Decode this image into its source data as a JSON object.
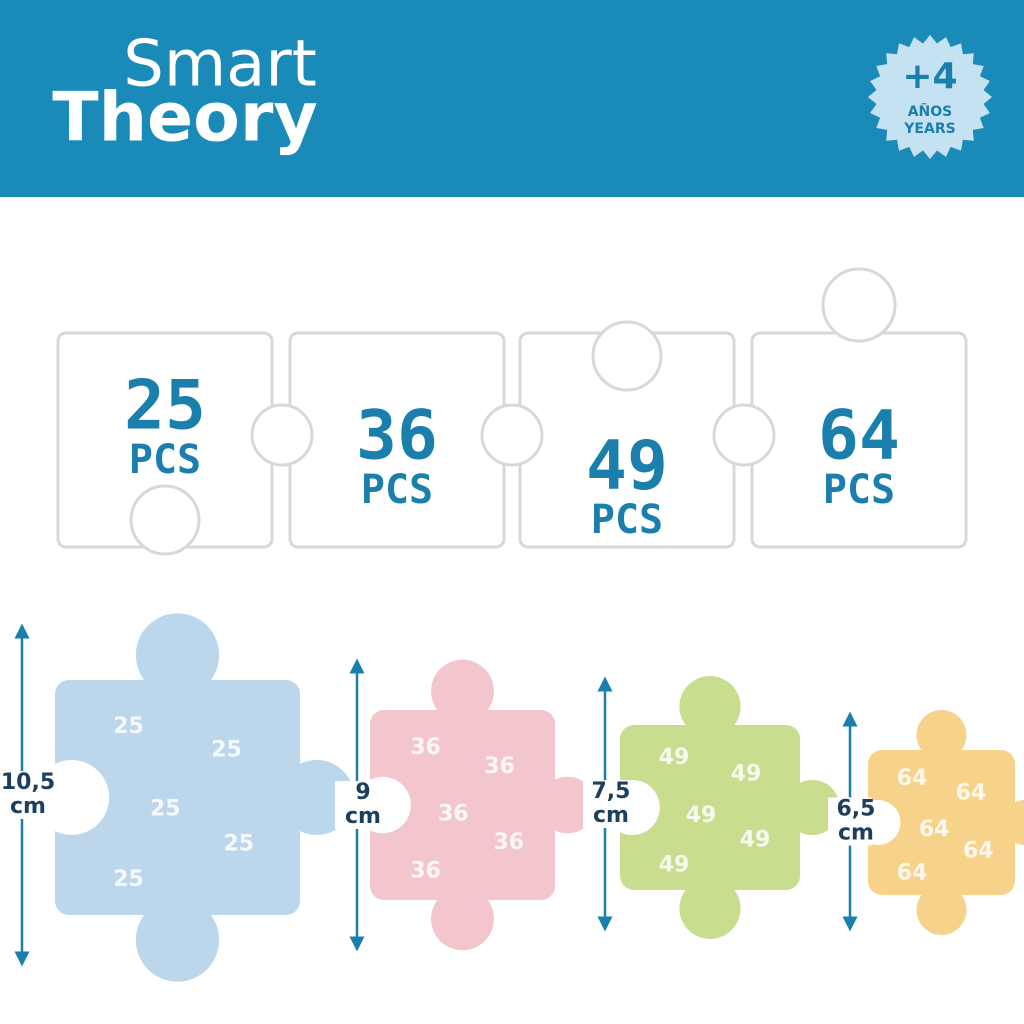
{
  "header": {
    "brand_top": "Smart",
    "brand_bottom": "Theory",
    "age_badge": {
      "number": "+4",
      "label_es": "AÑOS",
      "label_en": "YEARS"
    }
  },
  "puzzle_counts": [
    {
      "count": "25",
      "unit": "PCS"
    },
    {
      "count": "36",
      "unit": "PCS"
    },
    {
      "count": "49",
      "unit": "PCS"
    },
    {
      "count": "64",
      "unit": "PCS"
    }
  ],
  "pieces": [
    {
      "size": "10,5",
      "unit": "cm"
    },
    {
      "size": "9",
      "unit": "cm"
    },
    {
      "size": "7,5",
      "unit": "cm"
    },
    {
      "size": "6,5",
      "unit": "cm"
    }
  ]
}
